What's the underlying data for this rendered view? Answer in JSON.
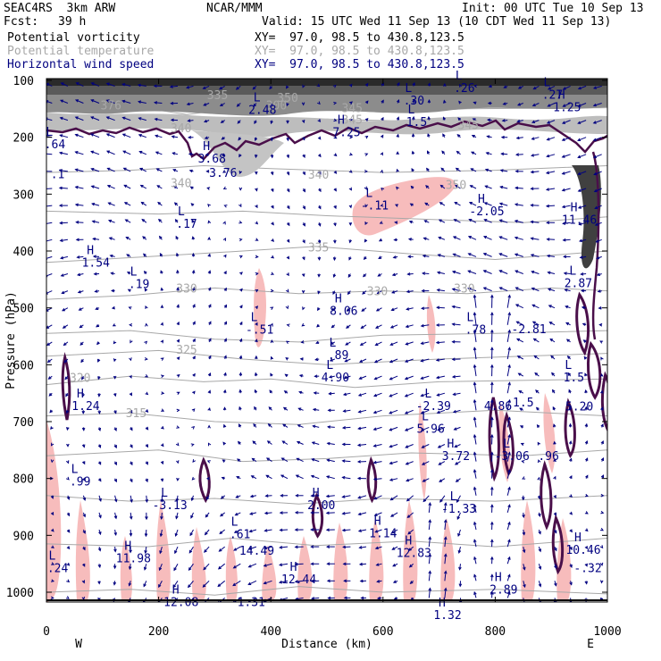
{
  "header": {
    "model": "SEAC4RS  3km ARW",
    "org": "NCAR/MMM",
    "init": "Init: 00 UTC Tue 10 Sep 13",
    "fcst_label": "Fcst:",
    "fcst_value": "39 h",
    "valid": "Valid: 15 UTC Wed 11 Sep 13 (10 CDT Wed 11 Sep 13)"
  },
  "fields": [
    {
      "name": "Potential vorticity",
      "xy": "XY=  97.0, 98.5 to 430.8,123.5",
      "color": "#000000",
      "xycolor": "#000000"
    },
    {
      "name": "Potential temperature",
      "xy": "XY=  97.0, 98.5 to 430.8,123.5",
      "color": "#a8a8a8",
      "xycolor": "#a8a8a8"
    },
    {
      "name": "Horizontal wind speed",
      "xy": "XY=  97.0, 98.5 to 430.8,123.5",
      "color": "#000080",
      "xycolor": "#000080"
    }
  ],
  "colors": {
    "pv_contour": "#4a0f4a",
    "theta": "#a8a8a8",
    "wind_vectors": "#000080",
    "positive_shading": "#f7bcbc",
    "pv_fill": "#707070"
  },
  "chart_data": {
    "type": "cross-section",
    "xlabel": "Distance (km)",
    "ylabel": "Pressure (hPa)",
    "xlim": [
      0,
      1000
    ],
    "ylim": [
      1020,
      100
    ],
    "x_ticks": [
      "0",
      "200",
      "400",
      "600",
      "800",
      "1000"
    ],
    "y_ticks": [
      "100",
      "200",
      "300",
      "400",
      "500",
      "600",
      "700",
      "800",
      "900",
      "1000"
    ],
    "x_end_labels": {
      "left": "W",
      "right": "E"
    },
    "theta_labels": [
      {
        "text": "335",
        "x": 305,
        "p": 125
      },
      {
        "text": "350",
        "x": 430,
        "p": 130
      },
      {
        "text": "345",
        "x": 545,
        "p": 148
      },
      {
        "text": "376",
        "x": 115,
        "p": 143
      },
      {
        "text": "300",
        "x": 410,
        "p": 143
      },
      {
        "text": "345",
        "x": 545,
        "p": 168
      },
      {
        "text": "340",
        "x": 240,
        "p": 183
      },
      {
        "text": "345",
        "x": 752,
        "p": 178
      },
      {
        "text": "340",
        "x": 240,
        "p": 280
      },
      {
        "text": "340",
        "x": 485,
        "p": 265
      },
      {
        "text": "350",
        "x": 730,
        "p": 283
      },
      {
        "text": "335",
        "x": 485,
        "p": 393
      },
      {
        "text": "330",
        "x": 250,
        "p": 465
      },
      {
        "text": "330",
        "x": 590,
        "p": 470
      },
      {
        "text": "330",
        "x": 745,
        "p": 465
      },
      {
        "text": "325",
        "x": 250,
        "p": 573
      },
      {
        "text": "320",
        "x": 60,
        "p": 622
      },
      {
        "text": "315",
        "x": 160,
        "p": 684
      }
    ],
    "hl_labels": [
      {
        "m": "L",
        "v": "2.48",
        "x": 385,
        "p": 142
      },
      {
        "m": "L",
        "v": ".30",
        "x": 655,
        "p": 125
      },
      {
        "m": "L",
        "v": ".26",
        "x": 745,
        "p": 103
      },
      {
        "m": "L",
        "v": ".27",
        "x": 902,
        "p": 115
      },
      {
        "m": "H",
        "v": "1.25",
        "x": 928,
        "p": 137
      },
      {
        "m": "L",
        "v": "1.5",
        "x": 660,
        "p": 163
      },
      {
        "m": "H",
        "v": "7.25",
        "x": 535,
        "p": 181
      },
      {
        "m": "L",
        "v": ".64",
        "x": 15,
        "p": 202
      },
      {
        "m": "H",
        "v": "3.68",
        "x": 295,
        "p": 227
      },
      {
        "m": "",
        "v": "3.76",
        "x": 315,
        "p": 252
      },
      {
        "m": "",
        "v": ".1",
        "x": 20,
        "p": 255
      },
      {
        "m": "L",
        "v": "-.11",
        "x": 585,
        "p": 310
      },
      {
        "m": "H",
        "v": "-2.05",
        "x": 785,
        "p": 320
      },
      {
        "m": "L",
        "v": ".17",
        "x": 250,
        "p": 342
      },
      {
        "m": "H",
        "v": "11.46",
        "x": 950,
        "p": 335
      },
      {
        "m": "H",
        "v": "1.54",
        "x": 88,
        "p": 410
      },
      {
        "m": "L",
        "v": ".19",
        "x": 165,
        "p": 448
      },
      {
        "m": "L",
        "v": "2.87",
        "x": 948,
        "p": 446
      },
      {
        "m": "H",
        "v": "8.06",
        "x": 530,
        "p": 495
      },
      {
        "m": "L",
        "v": "-.51",
        "x": 380,
        "p": 528
      },
      {
        "m": "L",
        "v": ".78",
        "x": 765,
        "p": 528
      },
      {
        "m": "",
        "v": "-2.81",
        "x": 860,
        "p": 527
      },
      {
        "m": "L",
        "v": ".89",
        "x": 520,
        "p": 573
      },
      {
        "m": "L",
        "v": "4.90",
        "x": 515,
        "p": 612
      },
      {
        "m": "L",
        "v": "1.5",
        "x": 940,
        "p": 612
      },
      {
        "m": "H",
        "v": "1.24",
        "x": 70,
        "p": 662
      },
      {
        "m": "L",
        "v": "-2.39",
        "x": 690,
        "p": 662
      },
      {
        "m": "",
        "v": "4.86",
        "x": 805,
        "p": 662
      },
      {
        "m": "",
        "v": "1.5",
        "x": 850,
        "p": 656
      },
      {
        "m": "",
        "v": "5.20",
        "x": 950,
        "p": 663
      },
      {
        "m": "L",
        "v": "5.96",
        "x": 685,
        "p": 702
      },
      {
        "m": "H",
        "v": "3.72",
        "x": 730,
        "p": 750
      },
      {
        "m": "L",
        "v": "-3.06",
        "x": 830,
        "p": 750
      },
      {
        "m": "",
        "v": ".96",
        "x": 895,
        "p": 750
      },
      {
        "m": "L",
        "v": ".99",
        "x": 60,
        "p": 795
      },
      {
        "m": "L",
        "v": "-3.13",
        "x": 220,
        "p": 837
      },
      {
        "m": "H",
        "v": "2.00",
        "x": 490,
        "p": 837
      },
      {
        "m": "L",
        "v": "-1.33",
        "x": 735,
        "p": 843
      },
      {
        "m": "L",
        "v": ".61",
        "x": 345,
        "p": 888
      },
      {
        "m": "H",
        "v": "1.14",
        "x": 600,
        "p": 886
      },
      {
        "m": "H",
        "v": "12.83",
        "x": 655,
        "p": 921
      },
      {
        "m": "H",
        "v": "10.46",
        "x": 957,
        "p": 915
      },
      {
        "m": "H",
        "v": "11.98",
        "x": 155,
        "p": 930
      },
      {
        "m": "",
        "v": "14.49",
        "x": 375,
        "p": 917
      },
      {
        "m": "L",
        "v": ".24",
        "x": 20,
        "p": 947
      },
      {
        "m": "H",
        "v": "12.44",
        "x": 450,
        "p": 967
      },
      {
        "m": "H",
        "v": "12.08",
        "x": 240,
        "p": 1007
      },
      {
        "m": "",
        "v": "1.31",
        "x": 365,
        "p": 1007
      },
      {
        "m": "H",
        "v": "2.89",
        "x": 815,
        "p": 985
      },
      {
        "m": "H",
        "v": "1.32",
        "x": 715,
        "p": 1030
      },
      {
        "m": "",
        "v": "-.32",
        "x": 965,
        "p": 947
      }
    ]
  }
}
